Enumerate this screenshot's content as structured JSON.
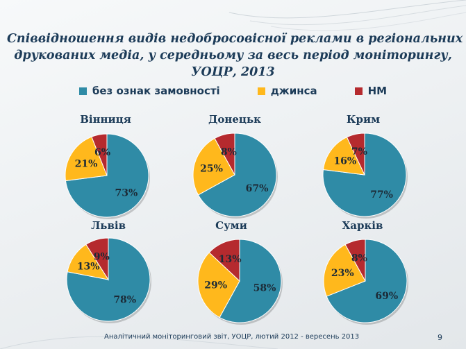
{
  "title_lines": [
    "Співвідношення видів недобросовісної реклами в регіональних",
    "друкованих медіа, у середньому за весь період моніторингу,",
    "УОЦР, 2013"
  ],
  "footer": "Аналітичний моніторинговий звіт, УОЦР, лютий 2012 - вересень 2013",
  "page_number": "9",
  "chart_data": {
    "type": "pie",
    "series": [
      {
        "name": "без ознак замовності",
        "color": "#2f8ba6"
      },
      {
        "name": "джинса",
        "color": "#ffb81c"
      },
      {
        "name": "НМ",
        "color": "#b52a2e"
      }
    ],
    "pies": [
      {
        "title": "Вінниця",
        "values": [
          73,
          21,
          6
        ]
      },
      {
        "title": "Донецьк",
        "values": [
          67,
          25,
          8
        ]
      },
      {
        "title": "Крим",
        "values": [
          77,
          16,
          7
        ]
      },
      {
        "title": "Львів",
        "values": [
          78,
          13,
          9
        ]
      },
      {
        "title": "Суми",
        "values": [
          58,
          29,
          13
        ]
      },
      {
        "title": "Харків",
        "values": [
          69,
          23,
          8
        ]
      }
    ],
    "legend_position": "top"
  }
}
